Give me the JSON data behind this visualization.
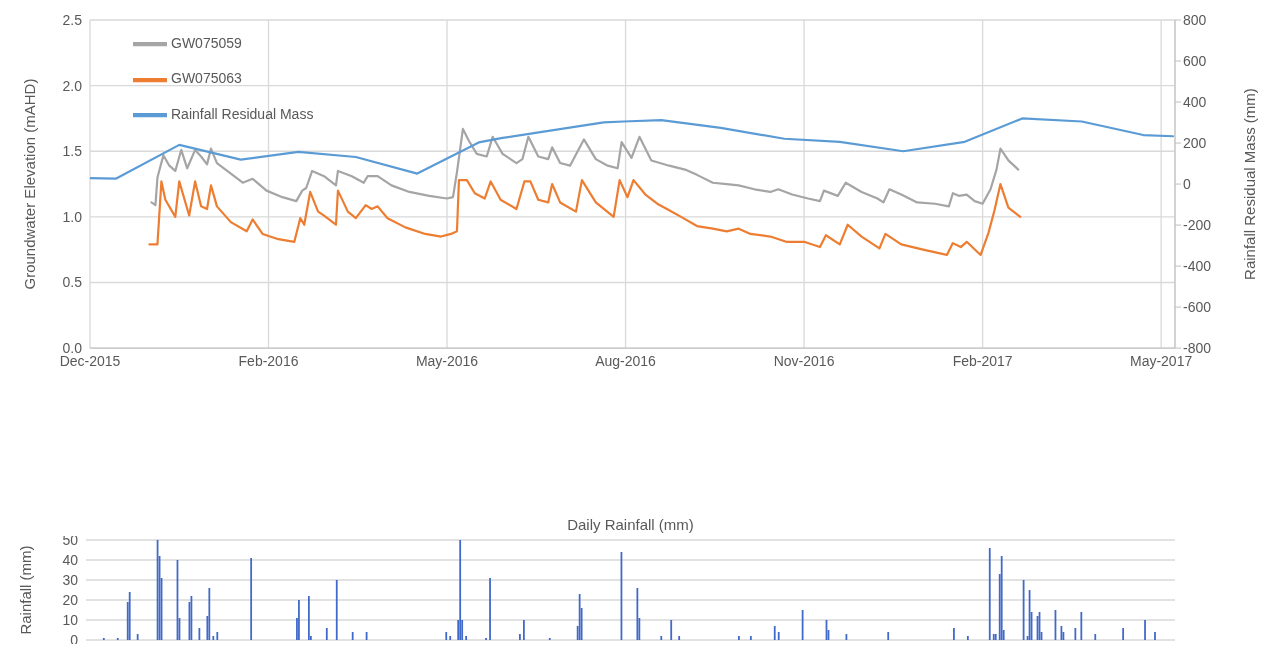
{
  "chart_data": [
    {
      "type": "line",
      "ylabel": "Groundwater Elevation (mAHD)",
      "y2label": "Rainfall Residual Mass (mm)",
      "legend": "top left",
      "grid": true,
      "xlim": [
        "2015-12-01",
        "2017-05-31"
      ],
      "xticks": [
        {
          "value": "2015-12-01",
          "label": "Dec-2015"
        },
        {
          "value": "2016-02-29",
          "label": "Feb-2016"
        },
        {
          "value": "2016-05-29",
          "label": "May-2016"
        },
        {
          "value": "2016-08-27",
          "label": "Aug-2016"
        },
        {
          "value": "2016-11-25",
          "label": "Nov-2016"
        },
        {
          "value": "2017-02-23",
          "label": "Feb-2017"
        },
        {
          "value": "2017-05-24",
          "label": "May-2017"
        }
      ],
      "ylim": [
        0,
        2.5
      ],
      "yticks": [
        {
          "value": 0,
          "label": "0.0"
        },
        0.5,
        {
          "value": 1,
          "label": "1.0"
        },
        1.5,
        {
          "value": 2,
          "label": "2.0"
        },
        2.5
      ],
      "y2lim": [
        -800,
        800
      ],
      "y2ticks": [
        -800,
        -600,
        -400,
        -200,
        0,
        200,
        400,
        600,
        800
      ],
      "series": [
        {
          "name": "GW075059",
          "color": "#a5a5a5",
          "x": [
            "2016-01-01",
            "2016-01-03",
            "2016-01-04",
            "2016-01-07",
            "2016-01-10",
            "2016-01-13",
            "2016-01-16",
            "2016-01-19",
            "2016-01-23",
            "2016-01-26",
            "2016-01-29",
            "2016-01-31",
            "2016-02-03",
            "2016-02-10",
            "2016-02-16",
            "2016-02-21",
            "2016-02-28",
            "2016-03-07",
            "2016-03-14",
            "2016-03-17",
            "2016-03-19",
            "2016-03-22",
            "2016-03-28",
            "2016-04-03",
            "2016-04-04",
            "2016-04-11",
            "2016-04-17",
            "2016-04-19",
            "2016-04-24",
            "2016-05-01",
            "2016-05-10",
            "2016-05-20",
            "2016-05-29",
            "2016-06-01",
            "2016-06-03",
            "2016-06-06",
            "2016-06-09",
            "2016-06-13",
            "2016-06-18",
            "2016-06-21",
            "2016-06-26",
            "2016-07-03",
            "2016-07-06",
            "2016-07-09",
            "2016-07-14",
            "2016-07-19",
            "2016-07-21",
            "2016-07-25",
            "2016-07-30",
            "2016-08-06",
            "2016-08-12",
            "2016-08-18",
            "2016-08-23",
            "2016-08-25",
            "2016-08-30",
            "2016-09-03",
            "2016-09-09",
            "2016-09-18",
            "2016-09-26",
            "2016-10-02",
            "2016-10-10",
            "2016-10-17",
            "2016-10-23",
            "2016-10-31",
            "2016-11-08",
            "2016-11-12",
            "2016-11-19",
            "2016-11-27",
            "2016-12-03",
            "2016-12-05",
            "2016-12-12",
            "2016-12-16",
            "2016-12-24",
            "2017-01-01",
            "2017-01-04",
            "2017-01-07",
            "2017-01-13",
            "2017-01-21",
            "2017-01-30",
            "2017-02-06",
            "2017-02-08",
            "2017-02-11",
            "2017-02-15",
            "2017-02-19",
            "2017-02-23",
            "2017-02-27",
            "2017-03-02",
            "2017-03-04",
            "2017-03-08",
            "2017-03-13"
          ],
          "values": [
            1.11,
            1.09,
            1.3,
            1.47,
            1.39,
            1.35,
            1.51,
            1.37,
            1.51,
            1.46,
            1.4,
            1.52,
            1.41,
            1.33,
            1.26,
            1.29,
            1.2,
            1.15,
            1.12,
            1.2,
            1.22,
            1.35,
            1.31,
            1.24,
            1.35,
            1.31,
            1.26,
            1.31,
            1.31,
            1.24,
            1.19,
            1.16,
            1.14,
            1.15,
            1.34,
            1.67,
            1.58,
            1.48,
            1.46,
            1.61,
            1.48,
            1.41,
            1.44,
            1.61,
            1.46,
            1.44,
            1.53,
            1.41,
            1.39,
            1.59,
            1.44,
            1.39,
            1.37,
            1.57,
            1.45,
            1.61,
            1.43,
            1.39,
            1.36,
            1.32,
            1.26,
            1.25,
            1.24,
            1.21,
            1.19,
            1.21,
            1.17,
            1.14,
            1.12,
            1.2,
            1.16,
            1.26,
            1.19,
            1.14,
            1.11,
            1.21,
            1.17,
            1.11,
            1.1,
            1.08,
            1.18,
            1.16,
            1.17,
            1.12,
            1.1,
            1.21,
            1.36,
            1.52,
            1.43,
            1.36
          ]
        },
        {
          "name": "GW075063",
          "color": "#ed7d31",
          "x": [
            "2015-12-31",
            "2016-01-04",
            "2016-01-06",
            "2016-01-08",
            "2016-01-13",
            "2016-01-15",
            "2016-01-20",
            "2016-01-23",
            "2016-01-26",
            "2016-01-29",
            "2016-01-31",
            "2016-02-03",
            "2016-02-10",
            "2016-02-18",
            "2016-02-21",
            "2016-02-26",
            "2016-03-05",
            "2016-03-13",
            "2016-03-16",
            "2016-03-18",
            "2016-03-21",
            "2016-03-25",
            "2016-03-28",
            "2016-04-03",
            "2016-04-04",
            "2016-04-09",
            "2016-04-13",
            "2016-04-18",
            "2016-04-21",
            "2016-04-24",
            "2016-04-29",
            "2016-05-08",
            "2016-05-18",
            "2016-05-26",
            "2016-05-31",
            "2016-06-03",
            "2016-06-04",
            "2016-06-08",
            "2016-06-12",
            "2016-06-17",
            "2016-06-20",
            "2016-06-25",
            "2016-07-03",
            "2016-07-07",
            "2016-07-10",
            "2016-07-14",
            "2016-07-19",
            "2016-07-21",
            "2016-07-25",
            "2016-08-02",
            "2016-08-05",
            "2016-08-12",
            "2016-08-21",
            "2016-08-24",
            "2016-08-28",
            "2016-08-31",
            "2016-09-06",
            "2016-09-12",
            "2016-09-18",
            "2016-09-24",
            "2016-10-02",
            "2016-10-10",
            "2016-10-17",
            "2016-10-23",
            "2016-10-29",
            "2016-11-08",
            "2016-11-16",
            "2016-11-25",
            "2016-12-03",
            "2016-12-06",
            "2016-12-13",
            "2016-12-17",
            "2016-12-24",
            "2017-01-02",
            "2017-01-05",
            "2017-01-13",
            "2017-01-24",
            "2017-02-05",
            "2017-02-08",
            "2017-02-12",
            "2017-02-15",
            "2017-02-22",
            "2017-02-26",
            "2017-03-01",
            "2017-03-04",
            "2017-03-08",
            "2017-03-14"
          ],
          "values": [
            0.79,
            0.79,
            1.27,
            1.13,
            1.0,
            1.27,
            1.01,
            1.27,
            1.08,
            1.06,
            1.24,
            1.08,
            0.96,
            0.89,
            0.98,
            0.87,
            0.83,
            0.81,
            0.99,
            0.94,
            1.19,
            1.04,
            1.01,
            0.94,
            1.2,
            1.04,
            0.99,
            1.09,
            1.06,
            1.08,
            0.99,
            0.92,
            0.87,
            0.85,
            0.87,
            0.89,
            1.28,
            1.28,
            1.18,
            1.14,
            1.27,
            1.13,
            1.06,
            1.27,
            1.27,
            1.13,
            1.11,
            1.25,
            1.11,
            1.04,
            1.28,
            1.11,
            1.0,
            1.28,
            1.15,
            1.28,
            1.17,
            1.1,
            1.05,
            1.0,
            0.93,
            0.91,
            0.89,
            0.91,
            0.87,
            0.85,
            0.81,
            0.81,
            0.77,
            0.86,
            0.79,
            0.94,
            0.85,
            0.76,
            0.87,
            0.79,
            0.75,
            0.71,
            0.8,
            0.77,
            0.81,
            0.71,
            0.88,
            1.05,
            1.25,
            1.07,
            1.0
          ]
        },
        {
          "name": "Rainfall Residual Mass",
          "color": "#5b9bd5",
          "axis": "y2",
          "x": [
            "2015-12-01",
            "2015-12-14",
            "2016-01-15",
            "2016-02-15",
            "2016-03-15",
            "2016-04-13",
            "2016-05-14",
            "2016-06-14",
            "2016-06-26",
            "2016-08-16",
            "2016-08-26",
            "2016-09-14",
            "2016-10-14",
            "2016-11-15",
            "2016-12-13",
            "2017-01-14",
            "2017-02-14",
            "2017-03-15",
            "2017-04-14",
            "2017-05-15",
            "2017-05-30"
          ],
          "values": [
            29,
            26,
            191,
            119,
            157,
            132,
            51,
            203,
            225,
            301,
            305,
            312,
            274,
            221,
            206,
            160,
            206,
            320,
            305,
            239,
            233
          ]
        }
      ]
    },
    {
      "type": "bar",
      "title": "Daily Rainfall (mm)",
      "ylabel": "Rainfall (mm)",
      "color": "#4169c8",
      "grid": "y",
      "tick_labels": "y",
      "xlim": [
        "2015-12-01",
        "2017-05-31"
      ],
      "ylim": [
        0,
        50
      ],
      "yticks": [
        0,
        10,
        20,
        30,
        40,
        50
      ],
      "x": [
        "2015-12-10",
        "2015-12-17",
        "2015-12-22",
        "2015-12-23",
        "2015-12-27",
        "2016-01-06",
        "2016-01-07",
        "2016-01-08",
        "2016-01-16",
        "2016-01-17",
        "2016-01-22",
        "2016-01-23",
        "2016-01-27",
        "2016-01-31",
        "2016-02-01",
        "2016-02-03",
        "2016-02-05",
        "2016-02-22",
        "2016-03-16",
        "2016-03-17",
        "2016-03-22",
        "2016-03-23",
        "2016-03-31",
        "2016-04-05",
        "2016-04-13",
        "2016-04-20",
        "2016-05-30",
        "2016-06-01",
        "2016-06-05",
        "2016-06-06",
        "2016-06-07",
        "2016-06-09",
        "2016-06-19",
        "2016-06-21",
        "2016-07-06",
        "2016-07-08",
        "2016-07-21",
        "2016-08-04",
        "2016-08-05",
        "2016-08-06",
        "2016-08-26",
        "2016-09-03",
        "2016-09-04",
        "2016-09-15",
        "2016-09-20",
        "2016-09-24",
        "2016-10-24",
        "2016-10-30",
        "2016-11-11",
        "2016-11-13",
        "2016-11-25",
        "2016-12-07",
        "2016-12-08",
        "2016-12-17",
        "2017-01-07",
        "2017-02-09",
        "2017-02-16",
        "2017-02-27",
        "2017-03-01",
        "2017-03-02",
        "2017-03-04",
        "2017-03-05",
        "2017-03-06",
        "2017-03-16",
        "2017-03-18",
        "2017-03-19",
        "2017-03-20",
        "2017-03-23",
        "2017-03-24",
        "2017-03-25",
        "2017-04-01",
        "2017-04-04",
        "2017-04-05",
        "2017-04-11",
        "2017-04-14",
        "2017-04-21",
        "2017-05-05",
        "2017-05-16",
        "2017-05-21"
      ],
      "values": [
        1,
        1,
        19,
        24,
        3,
        50,
        42,
        31,
        40,
        11,
        19,
        22,
        6,
        12,
        26,
        2,
        4,
        41,
        11,
        20,
        22,
        2,
        6,
        30,
        4,
        4,
        4,
        2,
        10,
        50,
        10,
        2,
        1,
        31,
        3,
        10,
        1,
        7,
        23,
        16,
        44,
        26,
        11,
        2,
        10,
        2,
        2,
        2,
        7,
        4,
        15,
        10,
        5,
        3,
        4,
        6,
        2,
        46,
        3,
        3,
        33,
        42,
        5,
        30,
        2,
        25,
        14,
        12,
        14,
        4,
        15,
        7,
        4,
        6,
        14,
        3,
        6,
        10,
        4
      ]
    }
  ]
}
